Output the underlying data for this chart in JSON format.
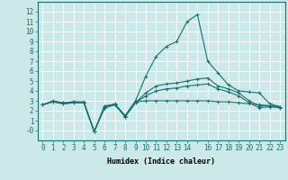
{
  "xlabel": "Humidex (Indice chaleur)",
  "background_color": "#cce8e8",
  "grid_color": "#ffffff",
  "line_color": "#1a7070",
  "x": [
    0,
    1,
    2,
    3,
    4,
    5,
    6,
    7,
    8,
    9,
    10,
    11,
    12,
    13,
    14,
    15,
    16,
    17,
    18,
    19,
    20,
    21,
    22,
    23
  ],
  "lines": {
    "line1": [
      2.6,
      3.0,
      2.8,
      2.9,
      2.9,
      -0.1,
      2.5,
      2.6,
      1.5,
      2.9,
      3.0,
      3.0,
      3.0,
      3.0,
      3.0,
      3.0,
      3.0,
      2.9,
      2.9,
      2.8,
      2.7,
      2.6,
      2.5,
      2.4
    ],
    "line2": [
      2.6,
      2.9,
      2.8,
      2.9,
      2.8,
      -0.1,
      2.4,
      2.7,
      1.5,
      3.0,
      5.5,
      7.5,
      8.5,
      9.0,
      11.0,
      11.7,
      7.0,
      5.8,
      4.6,
      4.0,
      3.9,
      3.8,
      2.7,
      2.4
    ],
    "line3": [
      2.6,
      2.9,
      2.7,
      2.8,
      2.8,
      -0.1,
      2.3,
      2.6,
      1.4,
      2.8,
      3.8,
      4.5,
      4.7,
      4.8,
      5.0,
      5.2,
      5.3,
      4.5,
      4.2,
      3.8,
      3.0,
      2.5,
      2.5,
      2.4
    ],
    "line4": [
      2.6,
      2.9,
      2.7,
      2.8,
      2.8,
      -0.1,
      2.3,
      2.6,
      1.4,
      2.8,
      3.5,
      4.0,
      4.2,
      4.3,
      4.5,
      4.6,
      4.7,
      4.2,
      3.9,
      3.5,
      2.8,
      2.3,
      2.4,
      2.3
    ]
  },
  "ylim": [
    -1,
    13
  ],
  "xlim": [
    -0.5,
    23.5
  ],
  "yticks": [
    0,
    1,
    2,
    3,
    4,
    5,
    6,
    7,
    8,
    9,
    10,
    11,
    12
  ],
  "ytick_labels": [
    "-0",
    "1",
    "2",
    "3",
    "4",
    "5",
    "6",
    "7",
    "8",
    "9",
    "10",
    "11",
    "12"
  ],
  "xticks": [
    0,
    1,
    2,
    3,
    4,
    5,
    6,
    7,
    8,
    9,
    10,
    11,
    12,
    13,
    14,
    15,
    16,
    17,
    18,
    19,
    20,
    21,
    22,
    23
  ],
  "xtick_labels": [
    "0",
    "1",
    "2",
    "3",
    "4",
    "5",
    "6",
    "7",
    "8",
    "9",
    "10",
    "11",
    "12",
    "13",
    "14",
    "",
    "16",
    "17",
    "18",
    "19",
    "20",
    "21",
    "22",
    "23"
  ],
  "marker": "+",
  "markersize": 3,
  "linewidth": 0.8,
  "tick_fontsize": 5.5,
  "xlabel_fontsize": 6.0
}
